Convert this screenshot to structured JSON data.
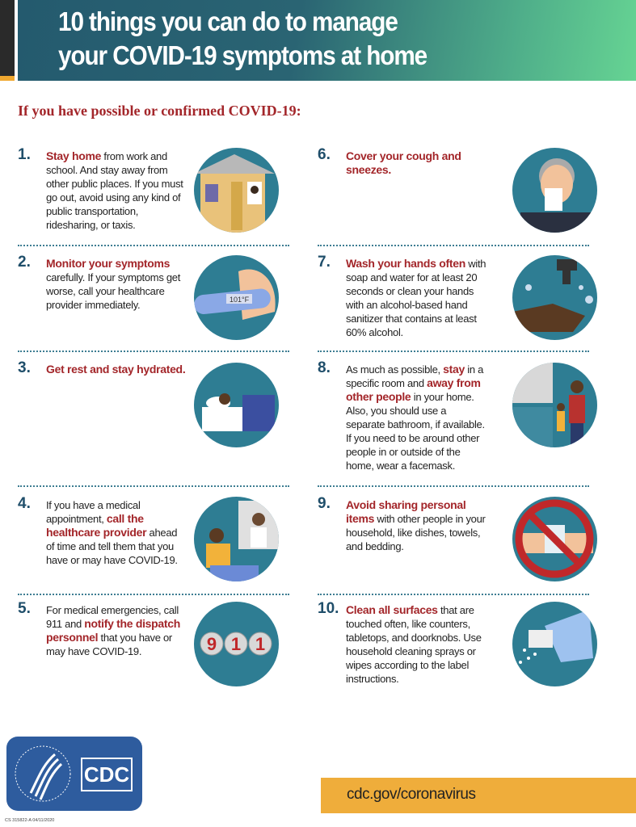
{
  "header": {
    "title_line1": "10 things you can do to manage",
    "title_line2": "your COVID-19 symptoms at home"
  },
  "subtitle": "If you have possible or confirmed COVID-19:",
  "items": [
    {
      "num": "1.",
      "segments": [
        {
          "t": "Stay home",
          "b": true
        },
        {
          "t": " from work and school. And stay away from other public places. If you must go out, avoid using any kind of public transportation, ridesharing, or taxis."
        }
      ],
      "icon": "house-icon"
    },
    {
      "num": "2.",
      "segments": [
        {
          "t": "Monitor your symptoms",
          "b": true
        },
        {
          "t": " carefully. If your symptoms get worse, call your healthcare provider immediately."
        }
      ],
      "icon": "thermometer-icon",
      "thermo": "101°F"
    },
    {
      "num": "3.",
      "segments": [
        {
          "t": "Get rest and stay hydrated.",
          "b": true
        }
      ],
      "icon": "bed-rest-icon"
    },
    {
      "num": "4.",
      "segments": [
        {
          "t": "If you have a medical appointment, "
        },
        {
          "t": "call the healthcare provider",
          "b": true
        },
        {
          "t": " ahead of time and tell them that you have or may have COVID-19."
        }
      ],
      "icon": "phone-call-doctor-icon"
    },
    {
      "num": "5.",
      "segments": [
        {
          "t": "For medical emergencies, call 911 and "
        },
        {
          "t": "notify the dispatch personnel",
          "b": true
        },
        {
          "t": " that you have or may have COVID-19."
        }
      ],
      "icon": "911-icon",
      "digits": [
        "9",
        "1",
        "1"
      ]
    },
    {
      "num": "6.",
      "segments": [
        {
          "t": "Cover your cough and sneezes.",
          "b": true
        }
      ],
      "icon": "tissue-sneeze-icon"
    },
    {
      "num": "7.",
      "segments": [
        {
          "t": "Wash your hands often",
          "b": true
        },
        {
          "t": " with soap and water for at least 20 seconds or clean your hands with an alcohol-based hand sanitizer that contains at least 60% alcohol."
        }
      ],
      "icon": "hand-washing-icon"
    },
    {
      "num": "8.",
      "segments": [
        {
          "t": "As much as possible, "
        },
        {
          "t": "stay",
          "b": true
        },
        {
          "t": " in a specific room and "
        },
        {
          "t": "away from other people",
          "b": true
        },
        {
          "t": " in your home. Also, you should use a separate bathroom, if available. If you need to be around other people in or outside of the home, wear a facemask."
        }
      ],
      "icon": "isolation-room-icon"
    },
    {
      "num": "9.",
      "segments": [
        {
          "t": "Avoid sharing personal items",
          "b": true
        },
        {
          "t": " with other people in your household, like dishes, towels, and bedding."
        }
      ],
      "icon": "no-sharing-icon"
    },
    {
      "num": "10.",
      "segments": [
        {
          "t": "Clean all surfaces",
          "b": true
        },
        {
          "t": " that are touched often, like counters, tabletops, and doorknobs. Use household cleaning sprays or wipes according to the label instructions."
        }
      ],
      "icon": "spray-cleaning-icon"
    }
  ],
  "footer": {
    "logo": "CDC",
    "url": "cdc.gov/coronavirus",
    "code": "CS 315822-A   04/11/2020"
  },
  "colors": {
    "accent_red": "#a3262a",
    "teal": "#2e7d93",
    "header_start": "#245a6e",
    "header_end": "#66d493",
    "url_bar": "#efad3b",
    "cdc_blue": "#2e5c9e"
  }
}
